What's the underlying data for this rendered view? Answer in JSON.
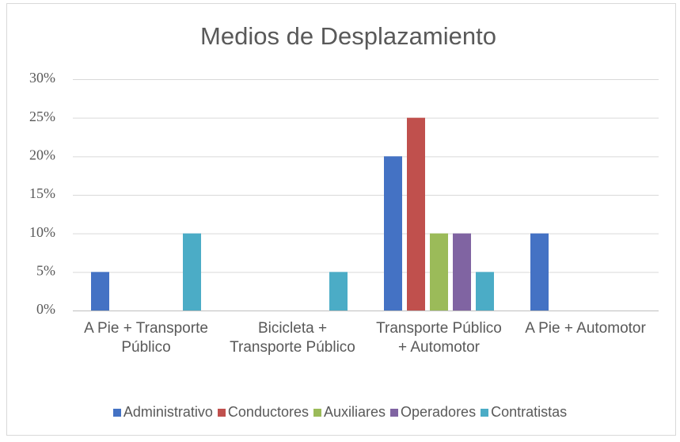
{
  "chart_data": {
    "type": "bar",
    "title": "Medios de Desplazamiento",
    "categories": [
      "A Pie + Transporte Público",
      "Bicicleta + Transporte Público",
      "Transporte Público + Automotor",
      "A Pie + Automotor"
    ],
    "series": [
      {
        "name": "Administrativo",
        "color": "#4472c4",
        "values": [
          5,
          0,
          20,
          10
        ]
      },
      {
        "name": "Conductores",
        "color": "#c0504d",
        "values": [
          0,
          0,
          25,
          0
        ]
      },
      {
        "name": "Auxiliares",
        "color": "#9bbb59",
        "values": [
          0,
          0,
          10,
          0
        ]
      },
      {
        "name": "Operadores",
        "color": "#8064a2",
        "values": [
          0,
          0,
          10,
          0
        ]
      },
      {
        "name": "Contratistas",
        "color": "#4bacc6",
        "values": [
          10,
          5,
          5,
          0
        ]
      }
    ],
    "ylim": [
      0,
      30
    ],
    "yticks": [
      {
        "value": 0,
        "label": "0%"
      },
      {
        "value": 5,
        "label": "5%"
      },
      {
        "value": 10,
        "label": "10%"
      },
      {
        "value": 15,
        "label": "15%"
      },
      {
        "value": 20,
        "label": "20%"
      },
      {
        "value": 25,
        "label": "25%"
      },
      {
        "value": 30,
        "label": "30%"
      }
    ],
    "grid": true,
    "legend": "bottom"
  }
}
